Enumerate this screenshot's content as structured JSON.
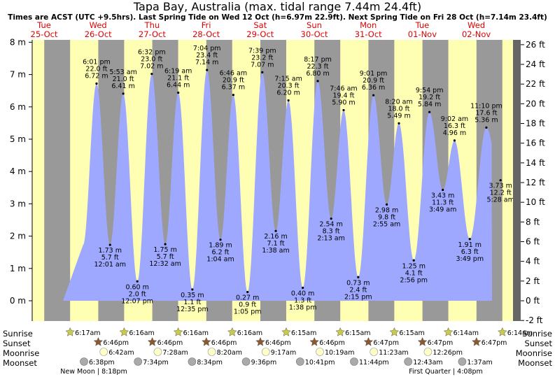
{
  "title": "Tapa Bay, Australia (max. tidal range 7.44m 24.4ft)",
  "subtitle": "Times are ACST (UTC +9.5hrs). Last Spring Tide on Wed 12 Oct (h=6.97m 22.9ft). Next Spring Tide on Fri 28 Oct (h=7.14m 23.4ft)",
  "row_labels": {
    "sunrise": "Sunrise",
    "sunset": "Sunset",
    "moonrise": "Moonrise",
    "moonset": "Moonset"
  },
  "moon_phases": [
    {
      "label": "New Moon | 8:18pm"
    },
    {
      "label": "First Quarter | 4:08pm"
    }
  ],
  "colors": {
    "day": "#ffffb4",
    "night": "#999999",
    "water": "#9ea8ff",
    "axis_right": "#666666",
    "day_name": "#e00000",
    "sun_icon": "#cccc44",
    "sunset_icon": "#8a5a2e",
    "moonrise_icon": "#ffffc8",
    "moonset_icon": "#aaaaaa"
  },
  "chart_data": {
    "type": "area",
    "ylim_m": [
      -0.3,
      8.1
    ],
    "ylim_ft": [
      -2,
      26.6
    ],
    "yticks_m": [
      "0 m",
      "1 m",
      "2 m",
      "3 m",
      "4 m",
      "5 m",
      "6 m",
      "7 m",
      "8 m"
    ],
    "yticks_ft": [
      "-2 ft",
      "0 ft",
      "2 ft",
      "4 ft",
      "6 ft",
      "8 ft",
      "10 ft",
      "12 ft",
      "14 ft",
      "16 ft",
      "18 ft",
      "20 ft",
      "22 ft",
      "24 ft",
      "26 ft"
    ],
    "days": [
      {
        "name": "Tue",
        "date": "25-Oct"
      },
      {
        "name": "Wed",
        "date": "26-Oct"
      },
      {
        "name": "Thu",
        "date": "27-Oct"
      },
      {
        "name": "Fri",
        "date": "28-Oct"
      },
      {
        "name": "Sat",
        "date": "29-Oct"
      },
      {
        "name": "Sun",
        "date": "30-Oct"
      },
      {
        "name": "Mon",
        "date": "31-Oct"
      },
      {
        "name": "Tue",
        "date": "01-Nov"
      },
      {
        "name": "Wed",
        "date": "02-Nov"
      }
    ],
    "tides": [
      {
        "time": "6:01 pm",
        "m": 6.72,
        "ft": "22.0 ft",
        "label_m": "6.72 m",
        "type": "high"
      },
      {
        "time": "12:01 am",
        "m": 1.73,
        "ft": "5.7 ft",
        "label_m": "1.73 m",
        "type": "low"
      },
      {
        "time": "5:53 am",
        "m": 6.41,
        "ft": "21.0 ft",
        "label_m": "6.41 m",
        "type": "high"
      },
      {
        "time": "12:07 pm",
        "m": 0.6,
        "ft": "2.0 ft",
        "label_m": "0.60 m",
        "type": "low"
      },
      {
        "time": "6:32 pm",
        "m": 7.02,
        "ft": "23.0 ft",
        "label_m": "7.02 m",
        "type": "high"
      },
      {
        "time": "12:32 am",
        "m": 1.75,
        "ft": "5.7 ft",
        "label_m": "1.75 m",
        "type": "low"
      },
      {
        "time": "6:19 am",
        "m": 6.44,
        "ft": "21.1 ft",
        "label_m": "6.44 m",
        "type": "high"
      },
      {
        "time": "12:35 pm",
        "m": 0.35,
        "ft": "1.1 ft",
        "label_m": "0.35 m",
        "type": "low"
      },
      {
        "time": "7:04 pm",
        "m": 7.14,
        "ft": "23.4 ft",
        "label_m": "7.14 m",
        "type": "high"
      },
      {
        "time": "1:04 am",
        "m": 1.89,
        "ft": "6.2 ft",
        "label_m": "1.89 m",
        "type": "low"
      },
      {
        "time": "6:46 am",
        "m": 6.37,
        "ft": "20.9 ft",
        "label_m": "6.37 m",
        "type": "high"
      },
      {
        "time": "1:05 pm",
        "m": 0.27,
        "ft": "0.9 ft",
        "label_m": "0.27 m",
        "type": "low"
      },
      {
        "time": "7:39 pm",
        "m": 7.07,
        "ft": "23.2 ft",
        "label_m": "7.07 m",
        "type": "high"
      },
      {
        "time": "1:38 am",
        "m": 2.16,
        "ft": "7.1 ft",
        "label_m": "2.16 m",
        "type": "low"
      },
      {
        "time": "7:15 am",
        "m": 6.2,
        "ft": "20.3 ft",
        "label_m": "6.20 m",
        "type": "high"
      },
      {
        "time": "1:38 pm",
        "m": 0.4,
        "ft": "1.3 ft",
        "label_m": "0.40 m",
        "type": "low"
      },
      {
        "time": "8:17 pm",
        "m": 6.8,
        "ft": "22.3 ft",
        "label_m": "6.80 m",
        "type": "high"
      },
      {
        "time": "2:13 am",
        "m": 2.54,
        "ft": "8.3 ft",
        "label_m": "2.54 m",
        "type": "low"
      },
      {
        "time": "7:46 am",
        "m": 5.9,
        "ft": "19.4 ft",
        "label_m": "5.90 m",
        "type": "high"
      },
      {
        "time": "2:15 pm",
        "m": 0.73,
        "ft": "2.4 ft",
        "label_m": "0.73 m",
        "type": "low"
      },
      {
        "time": "9:01 pm",
        "m": 6.36,
        "ft": "20.9 ft",
        "label_m": "6.36 m",
        "type": "high"
      },
      {
        "time": "2:55 am",
        "m": 2.98,
        "ft": "9.8 ft",
        "label_m": "2.98 m",
        "type": "low"
      },
      {
        "time": "8:20 am",
        "m": 5.49,
        "ft": "18.0 ft",
        "label_m": "5.49 m",
        "type": "high"
      },
      {
        "time": "2:56 pm",
        "m": 1.25,
        "ft": "4.1 ft",
        "label_m": "1.25 m",
        "type": "low"
      },
      {
        "time": "9:54 pm",
        "m": 5.84,
        "ft": "19.2 ft",
        "label_m": "5.84 m",
        "type": "high"
      },
      {
        "time": "3:49 am",
        "m": 3.43,
        "ft": "11.3 ft",
        "label_m": "3.43 m",
        "type": "low"
      },
      {
        "time": "9:02 am",
        "m": 4.96,
        "ft": "16.3 ft",
        "label_m": "4.96 m",
        "type": "high"
      },
      {
        "time": "3:49 pm",
        "m": 1.91,
        "ft": "6.3 ft",
        "label_m": "1.91 m",
        "type": "low"
      },
      {
        "time": "11:10 pm",
        "m": 5.36,
        "ft": "17.6 ft",
        "label_m": "5.36 m",
        "type": "high"
      },
      {
        "time": "5:28 am",
        "m": 3.73,
        "ft": "12.2 ft",
        "label_m": "3.73 m",
        "type": "low"
      }
    ],
    "sunrise": [
      "6:17am",
      "6:16am",
      "6:16am",
      "6:16am",
      "6:15am",
      "6:15am",
      "6:15am",
      "6:14am",
      "6:14am"
    ],
    "sunset": [
      "6:46pm",
      "6:46pm",
      "6:46pm",
      "6:46pm",
      "6:46pm",
      "6:47pm",
      "6:47pm",
      "6:47pm"
    ],
    "moonrise": [
      "6:42am",
      "7:28am",
      "8:20am",
      "9:17am",
      "10:19am",
      "11:23am",
      "12:26pm"
    ],
    "moonset": [
      "6:38pm",
      "7:34pm",
      "8:34pm",
      "9:36pm",
      "10:41pm",
      "11:44pm",
      "12:43am",
      "1:37am"
    ]
  }
}
